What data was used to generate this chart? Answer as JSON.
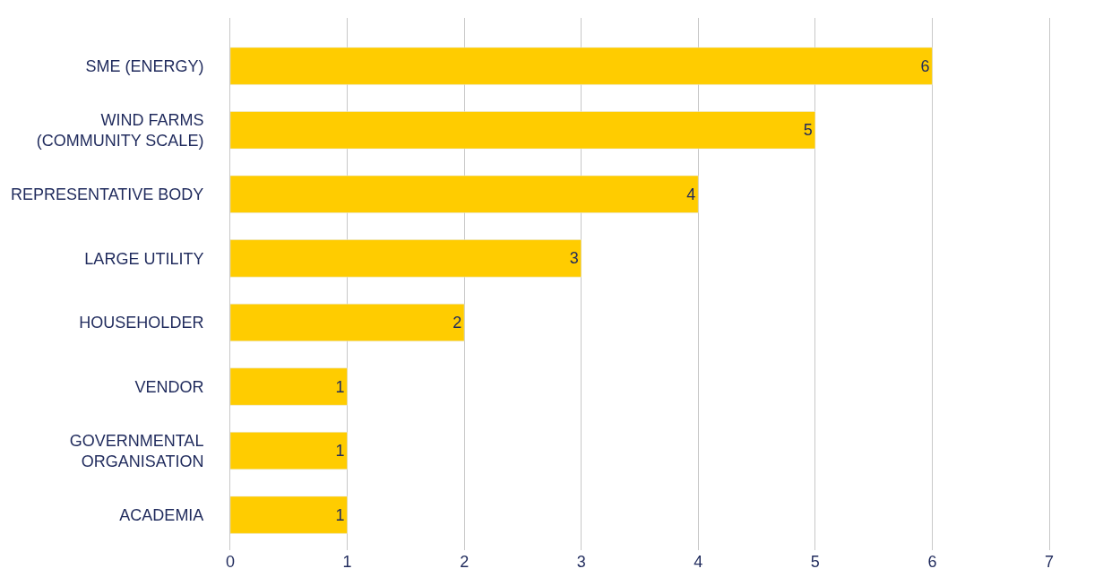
{
  "chart_data": {
    "type": "bar",
    "orientation": "horizontal",
    "categories": [
      "SME (ENERGY)",
      "WIND FARMS\n(COMMUNITY SCALE)",
      "REPRESENTATIVE BODY",
      "LARGE UTILITY",
      "HOUSEHOLDER",
      "VENDOR",
      "GOVERNMENTAL\nORGANISATION",
      "ACADEMIA"
    ],
    "values": [
      6,
      5,
      4,
      3,
      2,
      1,
      1,
      1
    ],
    "color": "#ffcc00",
    "xlim": [
      0,
      7
    ],
    "xticks": [
      0,
      1,
      2,
      3,
      4,
      5,
      6,
      7
    ],
    "grid": "x",
    "data_labels": true
  }
}
